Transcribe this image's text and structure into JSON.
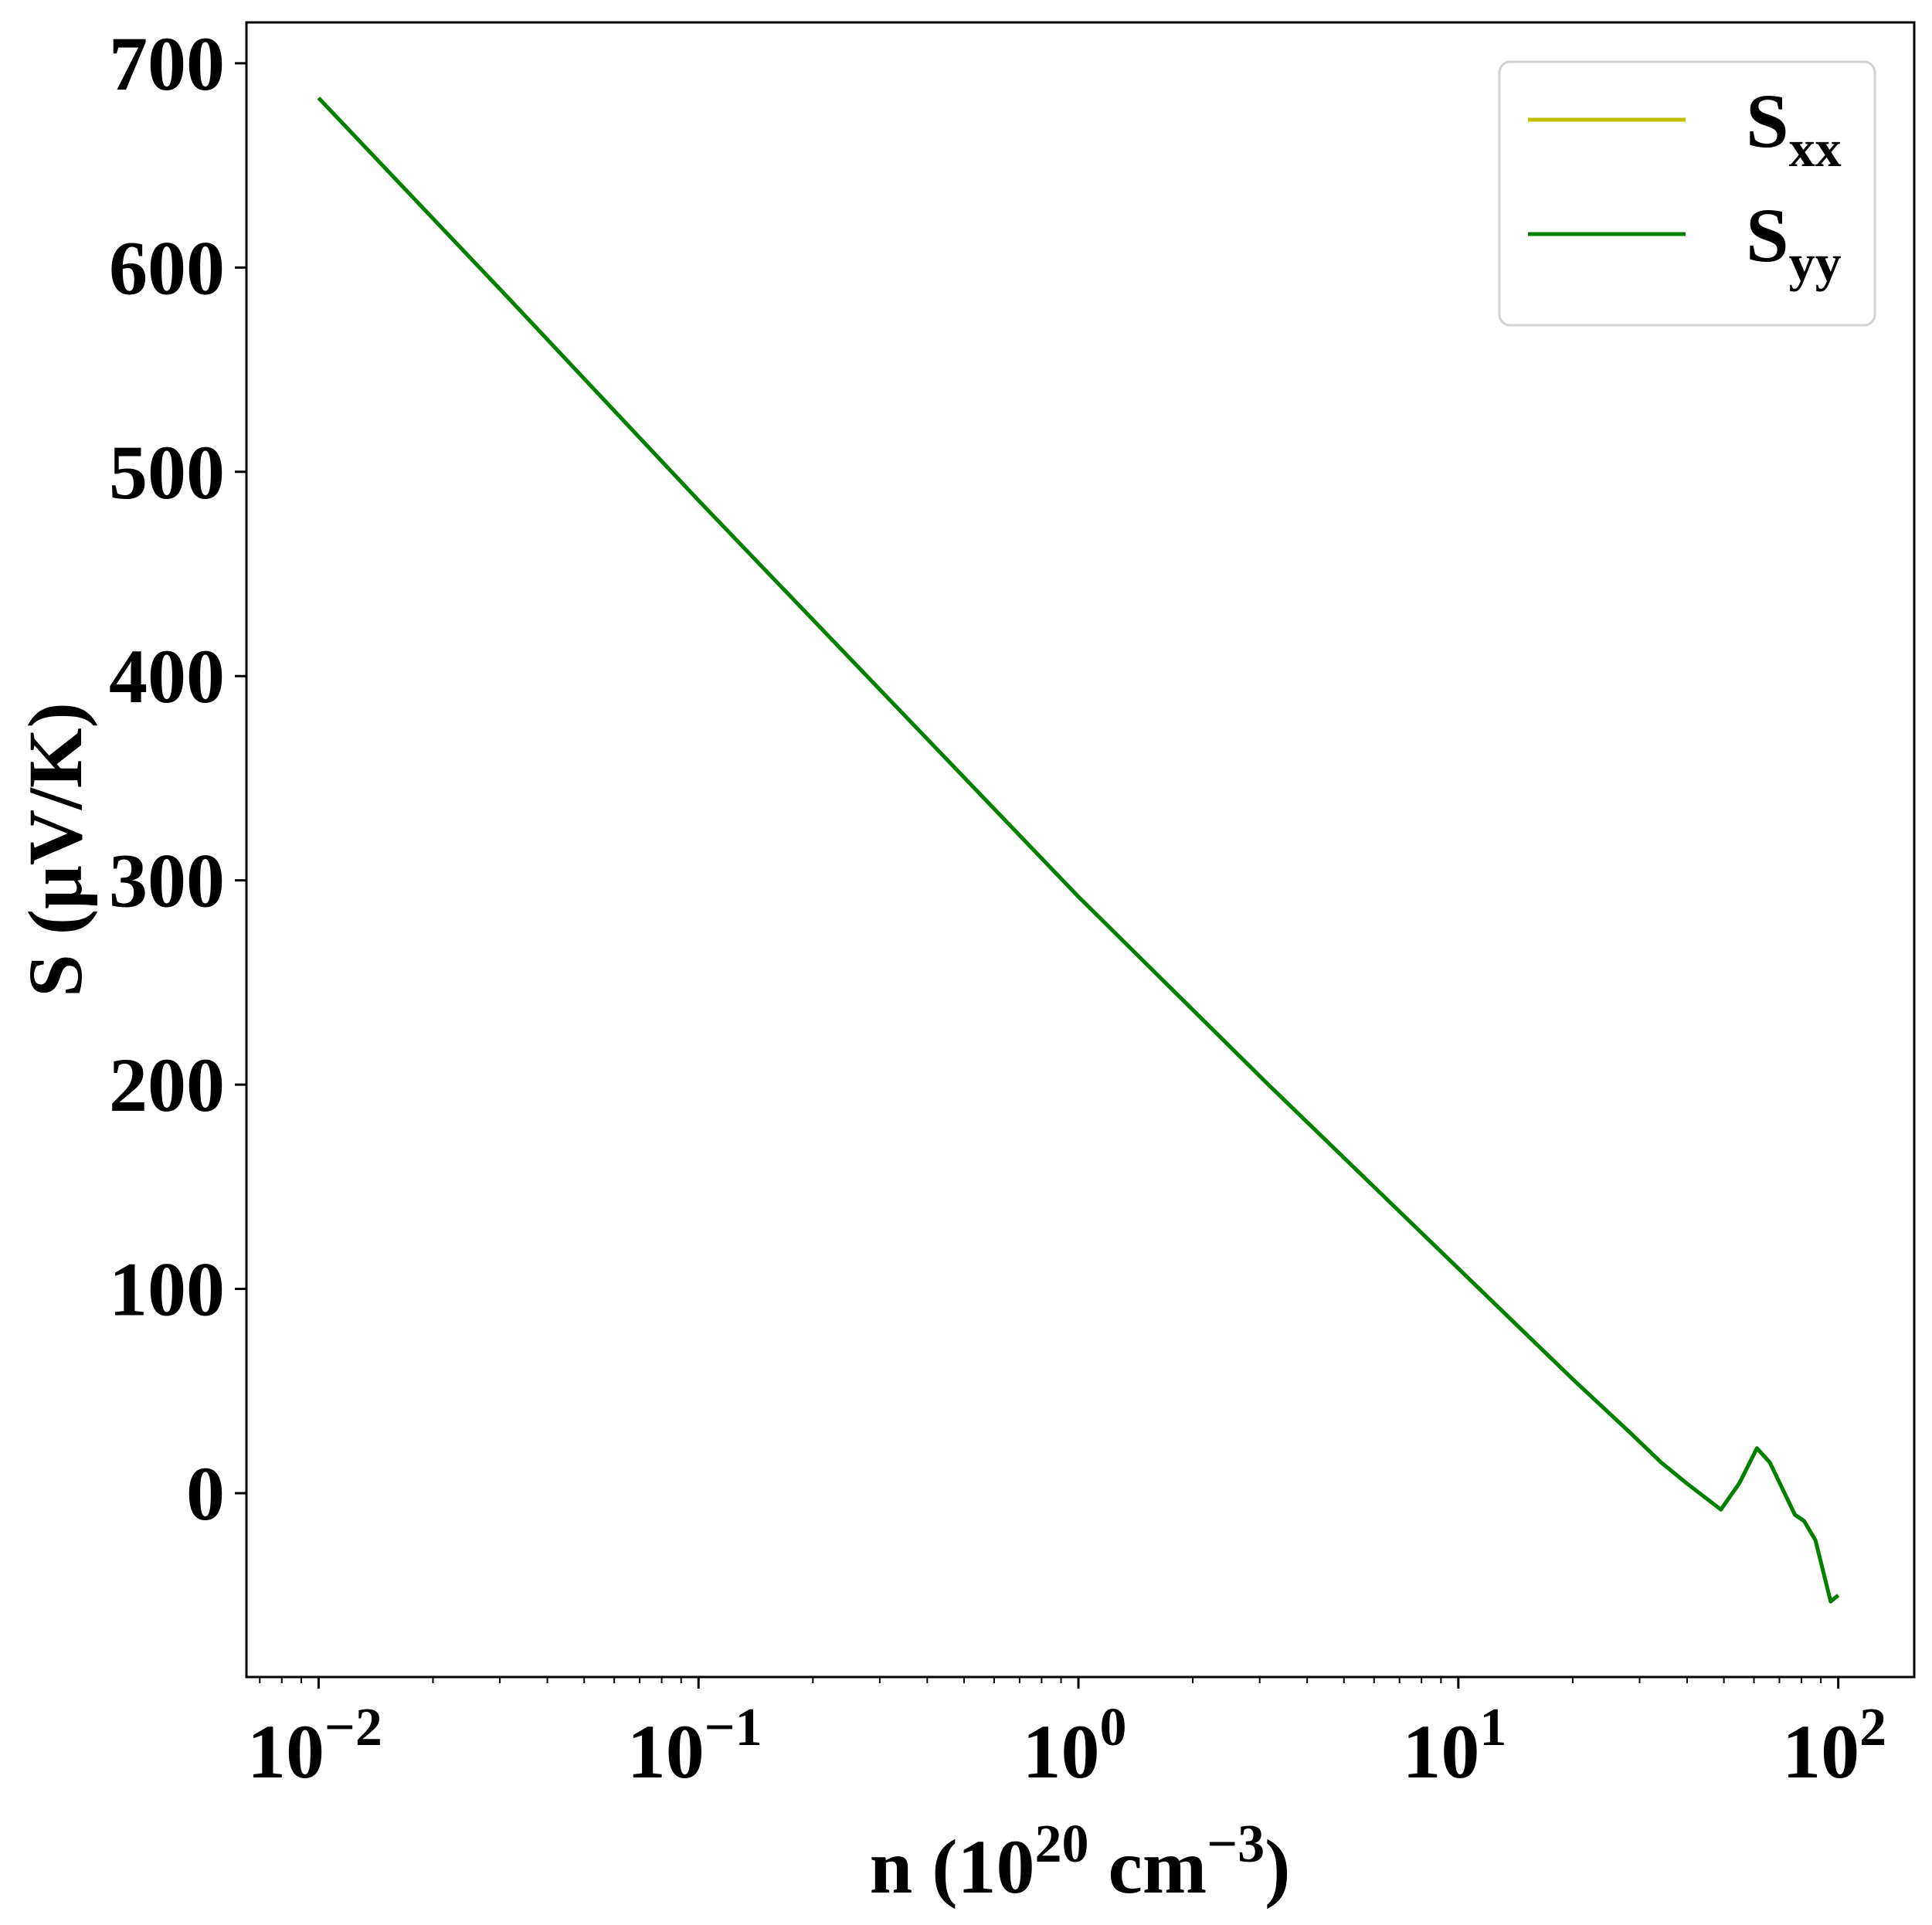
{
  "chart_data": {
    "type": "line",
    "title": "",
    "xlabel": "n (10^20 cm^-3)",
    "xlabel_parts": {
      "base": "n (10",
      "exp1": "20",
      "mid": " cm",
      "exp2": "−3",
      "end": ")"
    },
    "ylabel": "S (μV/K)",
    "xscale": "log",
    "xlim_log10": [
      -2.19,
      2.2
    ],
    "ylim": [
      -90,
      720
    ],
    "xticks": [
      {
        "base": "10",
        "exp": "−2",
        "log10": -2
      },
      {
        "base": "10",
        "exp": "−1",
        "log10": -1
      },
      {
        "base": "10",
        "exp": "0",
        "log10": 0
      },
      {
        "base": "10",
        "exp": "1",
        "log10": 1
      },
      {
        "base": "10",
        "exp": "2",
        "log10": 2
      }
    ],
    "yticks": [
      "0",
      "100",
      "200",
      "300",
      "400",
      "500",
      "600",
      "700"
    ],
    "grid": false,
    "legend_position": "top-right",
    "series": [
      {
        "name": "S_xx",
        "label_main": "S",
        "label_sub": "xx",
        "color": "#bfbf00",
        "log10_n": [
          -2,
          -1.5,
          -1,
          -0.5,
          0,
          0.5,
          1,
          1.3,
          1.45,
          1.534,
          1.6,
          1.691,
          1.74,
          1.786,
          1.82,
          1.886,
          1.91,
          1.94,
          1.98,
          2
        ],
        "values": [
          683,
          585,
          486,
          389,
          292,
          200,
          110,
          56,
          30,
          15,
          5,
          -8,
          5,
          22,
          15,
          -10.6,
          -13.6,
          -23,
          -53,
          -50
        ]
      },
      {
        "name": "S_yy",
        "label_main": "S",
        "label_sub": "yy",
        "color": "#008000",
        "log10_n": [
          -2,
          -1.5,
          -1,
          -0.5,
          0,
          0.5,
          1,
          1.3,
          1.45,
          1.534,
          1.6,
          1.691,
          1.74,
          1.786,
          1.82,
          1.886,
          1.91,
          1.94,
          1.98,
          2
        ],
        "values": [
          683,
          585,
          486,
          389,
          292,
          200,
          110,
          56,
          30,
          15,
          5,
          -8,
          5,
          22,
          15,
          -10.6,
          -13.6,
          -23,
          -53,
          -50
        ]
      }
    ]
  }
}
